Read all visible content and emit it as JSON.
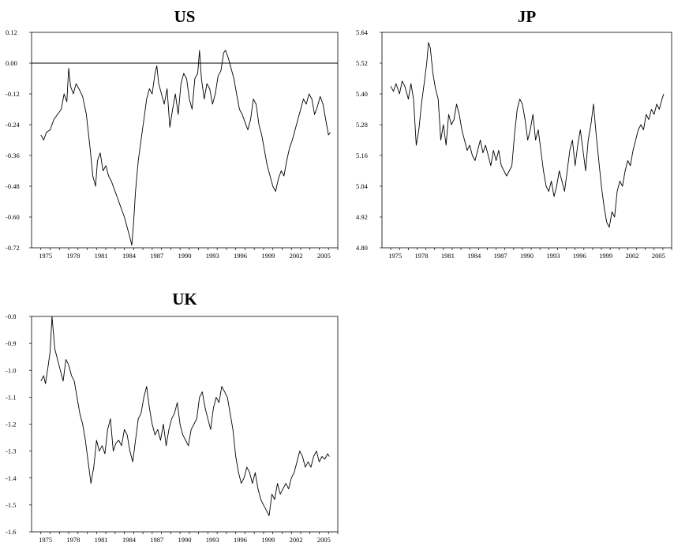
{
  "chart_data": [
    {
      "type": "line",
      "title": "US",
      "xlim": [
        1974.0,
        2007.0
      ],
      "ylim": [
        -0.72,
        0.12
      ],
      "xticks": [
        "1975",
        "1978",
        "1981",
        "1984",
        "1987",
        "1990",
        "1993",
        "1996",
        "1999",
        "2002",
        "2005"
      ],
      "yticks": [
        "0.12",
        "0.00",
        "-0.12",
        "-0.24",
        "-0.36",
        "-0.48",
        "-0.60",
        "-0.72"
      ],
      "reference_line_y": 0.0,
      "x": [
        1975.0,
        1975.3,
        1975.6,
        1976.0,
        1976.4,
        1976.8,
        1977.2,
        1977.5,
        1977.8,
        1978.0,
        1978.2,
        1978.5,
        1978.8,
        1979.1,
        1979.5,
        1979.9,
        1980.3,
        1980.6,
        1980.9,
        1981.1,
        1981.4,
        1981.7,
        1982.0,
        1982.3,
        1982.6,
        1982.9,
        1983.2,
        1983.5,
        1983.8,
        1984.0,
        1984.3,
        1984.6,
        1984.8,
        1985.0,
        1985.2,
        1985.5,
        1985.8,
        1986.1,
        1986.4,
        1986.7,
        1987.0,
        1987.3,
        1987.5,
        1987.7,
        1988.0,
        1988.3,
        1988.6,
        1988.9,
        1989.2,
        1989.5,
        1989.8,
        1990.1,
        1990.4,
        1990.7,
        1991.0,
        1991.3,
        1991.6,
        1991.9,
        1992.1,
        1992.3,
        1992.6,
        1992.9,
        1993.2,
        1993.5,
        1993.8,
        1994.1,
        1994.4,
        1994.7,
        1994.9,
        1995.2,
        1995.5,
        1995.8,
        1996.1,
        1996.4,
        1996.7,
        1997.0,
        1997.3,
        1997.6,
        1997.9,
        1998.2,
        1998.5,
        1998.8,
        1999.1,
        1999.4,
        1999.7,
        2000.0,
        2000.3,
        2000.6,
        2000.9,
        2001.2,
        2001.5,
        2001.8,
        2002.1,
        2002.4,
        2002.7,
        2003.0,
        2003.3,
        2003.6,
        2003.9,
        2004.2,
        2004.5,
        2004.8,
        2005.1,
        2005.4,
        2005.7,
        2006.0,
        2006.2
      ],
      "values": [
        -0.28,
        -0.3,
        -0.27,
        -0.26,
        -0.22,
        -0.2,
        -0.18,
        -0.12,
        -0.15,
        -0.02,
        -0.09,
        -0.12,
        -0.08,
        -0.1,
        -0.13,
        -0.2,
        -0.33,
        -0.44,
        -0.48,
        -0.38,
        -0.35,
        -0.42,
        -0.4,
        -0.44,
        -0.46,
        -0.49,
        -0.52,
        -0.55,
        -0.58,
        -0.6,
        -0.64,
        -0.68,
        -0.71,
        -0.62,
        -0.5,
        -0.38,
        -0.3,
        -0.22,
        -0.14,
        -0.1,
        -0.12,
        -0.04,
        -0.01,
        -0.08,
        -0.12,
        -0.16,
        -0.1,
        -0.25,
        -0.18,
        -0.12,
        -0.2,
        -0.08,
        -0.04,
        -0.06,
        -0.14,
        -0.18,
        -0.06,
        -0.04,
        0.05,
        -0.06,
        -0.14,
        -0.08,
        -0.1,
        -0.16,
        -0.12,
        -0.05,
        -0.03,
        0.04,
        0.05,
        0.02,
        -0.02,
        -0.06,
        -0.12,
        -0.18,
        -0.2,
        -0.23,
        -0.26,
        -0.22,
        -0.14,
        -0.16,
        -0.24,
        -0.28,
        -0.34,
        -0.4,
        -0.44,
        -0.48,
        -0.5,
        -0.45,
        -0.42,
        -0.44,
        -0.38,
        -0.33,
        -0.3,
        -0.26,
        -0.22,
        -0.18,
        -0.14,
        -0.16,
        -0.12,
        -0.14,
        -0.2,
        -0.17,
        -0.13,
        -0.16,
        -0.22,
        -0.28,
        -0.27
      ]
    },
    {
      "type": "line",
      "title": "JP",
      "xlim": [
        1974.0,
        2007.0
      ],
      "ylim": [
        4.8,
        5.64
      ],
      "xticks": [
        "1975",
        "1978",
        "1981",
        "1984",
        "1987",
        "1990",
        "1993",
        "1996",
        "1999",
        "2002",
        "2005"
      ],
      "yticks": [
        "5.64",
        "5.52",
        "5.40",
        "5.28",
        "5.16",
        "5.04",
        "4.92",
        "4.80"
      ],
      "x": [
        1975.0,
        1975.3,
        1975.6,
        1976.0,
        1976.3,
        1976.6,
        1977.0,
        1977.3,
        1977.6,
        1977.9,
        1978.2,
        1978.5,
        1978.8,
        1979.1,
        1979.3,
        1979.5,
        1979.8,
        1980.1,
        1980.4,
        1980.7,
        1981.0,
        1981.3,
        1981.6,
        1981.9,
        1982.2,
        1982.5,
        1982.8,
        1983.1,
        1983.4,
        1983.7,
        1984.0,
        1984.3,
        1984.6,
        1984.9,
        1985.2,
        1985.5,
        1985.8,
        1986.1,
        1986.4,
        1986.7,
        1987.0,
        1987.3,
        1987.6,
        1987.9,
        1988.2,
        1988.5,
        1988.8,
        1989.1,
        1989.4,
        1989.7,
        1990.0,
        1990.3,
        1990.6,
        1990.9,
        1991.2,
        1991.5,
        1991.8,
        1992.1,
        1992.4,
        1992.7,
        1993.0,
        1993.3,
        1993.6,
        1993.9,
        1994.2,
        1994.5,
        1994.8,
        1995.1,
        1995.4,
        1995.7,
        1996.0,
        1996.3,
        1996.6,
        1996.9,
        1997.2,
        1997.5,
        1997.8,
        1998.1,
        1998.4,
        1998.7,
        1999.0,
        1999.3,
        1999.6,
        1999.9,
        2000.2,
        2000.5,
        2000.8,
        2001.1,
        2001.4,
        2001.7,
        2002.0,
        2002.3,
        2002.6,
        2002.9,
        2003.2,
        2003.5,
        2003.8,
        2004.1,
        2004.4,
        2004.7,
        2005.0,
        2005.3,
        2005.6,
        2005.9,
        2006.1
      ],
      "values": [
        5.43,
        5.41,
        5.44,
        5.4,
        5.45,
        5.43,
        5.38,
        5.44,
        5.38,
        5.2,
        5.26,
        5.36,
        5.44,
        5.52,
        5.6,
        5.58,
        5.48,
        5.42,
        5.38,
        5.22,
        5.28,
        5.2,
        5.32,
        5.28,
        5.3,
        5.36,
        5.32,
        5.26,
        5.22,
        5.18,
        5.2,
        5.16,
        5.14,
        5.18,
        5.22,
        5.17,
        5.2,
        5.16,
        5.12,
        5.18,
        5.14,
        5.18,
        5.12,
        5.1,
        5.08,
        5.1,
        5.12,
        5.24,
        5.34,
        5.38,
        5.36,
        5.3,
        5.22,
        5.26,
        5.32,
        5.22,
        5.26,
        5.18,
        5.1,
        5.04,
        5.02,
        5.06,
        5.0,
        5.04,
        5.1,
        5.06,
        5.02,
        5.1,
        5.18,
        5.22,
        5.12,
        5.2,
        5.26,
        5.18,
        5.1,
        5.22,
        5.28,
        5.36,
        5.24,
        5.14,
        5.04,
        4.96,
        4.9,
        4.88,
        4.94,
        4.92,
        5.02,
        5.06,
        5.04,
        5.1,
        5.14,
        5.12,
        5.18,
        5.22,
        5.26,
        5.28,
        5.26,
        5.32,
        5.3,
        5.34,
        5.32,
        5.36,
        5.34,
        5.38,
        5.4
      ]
    },
    {
      "type": "line",
      "title": "UK",
      "xlim": [
        1974.0,
        2007.0
      ],
      "ylim": [
        -1.6,
        -0.8
      ],
      "xticks": [
        "1975",
        "1978",
        "1981",
        "1984",
        "1987",
        "1990",
        "1993",
        "1996",
        "1999",
        "2002",
        "2005"
      ],
      "yticks": [
        "-0.8",
        "-0.9",
        "-1.0",
        "-1.1",
        "-1.2",
        "-1.3",
        "-1.4",
        "-1.5",
        "-1.6"
      ],
      "x": [
        1975.0,
        1975.3,
        1975.5,
        1975.8,
        1976.0,
        1976.2,
        1976.5,
        1976.8,
        1977.1,
        1977.4,
        1977.7,
        1978.0,
        1978.3,
        1978.6,
        1978.9,
        1979.2,
        1979.5,
        1979.8,
        1980.1,
        1980.4,
        1980.7,
        1981.0,
        1981.3,
        1981.6,
        1981.9,
        1982.2,
        1982.5,
        1982.8,
        1983.1,
        1983.4,
        1983.7,
        1984.0,
        1984.3,
        1984.6,
        1984.9,
        1985.2,
        1985.5,
        1985.8,
        1986.1,
        1986.4,
        1986.7,
        1987.0,
        1987.3,
        1987.6,
        1987.9,
        1988.2,
        1988.5,
        1988.8,
        1989.1,
        1989.4,
        1989.7,
        1990.0,
        1990.3,
        1990.6,
        1990.9,
        1991.2,
        1991.5,
        1991.8,
        1992.1,
        1992.4,
        1992.7,
        1993.0,
        1993.3,
        1993.6,
        1993.9,
        1994.2,
        1994.5,
        1994.8,
        1995.1,
        1995.4,
        1995.7,
        1996.0,
        1996.3,
        1996.6,
        1996.9,
        1997.2,
        1997.5,
        1997.8,
        1998.1,
        1998.4,
        1998.7,
        1999.0,
        1999.3,
        1999.6,
        1999.9,
        2000.2,
        2000.5,
        2000.8,
        2001.1,
        2001.4,
        2001.7,
        2002.0,
        2002.3,
        2002.6,
        2002.9,
        2003.2,
        2003.5,
        2003.8,
        2004.1,
        2004.4,
        2004.7,
        2005.0,
        2005.3,
        2005.6,
        2005.9,
        2006.1
      ],
      "values": [
        -1.04,
        -1.02,
        -1.05,
        -0.98,
        -0.93,
        -0.8,
        -0.92,
        -0.96,
        -1.0,
        -1.04,
        -0.96,
        -0.98,
        -1.02,
        -1.04,
        -1.1,
        -1.16,
        -1.2,
        -1.26,
        -1.34,
        -1.42,
        -1.36,
        -1.26,
        -1.3,
        -1.28,
        -1.31,
        -1.22,
        -1.18,
        -1.3,
        -1.27,
        -1.26,
        -1.28,
        -1.22,
        -1.24,
        -1.3,
        -1.34,
        -1.26,
        -1.18,
        -1.16,
        -1.1,
        -1.06,
        -1.14,
        -1.2,
        -1.24,
        -1.22,
        -1.26,
        -1.2,
        -1.28,
        -1.22,
        -1.18,
        -1.16,
        -1.12,
        -1.2,
        -1.24,
        -1.26,
        -1.28,
        -1.22,
        -1.2,
        -1.18,
        -1.1,
        -1.08,
        -1.14,
        -1.18,
        -1.22,
        -1.14,
        -1.1,
        -1.12,
        -1.06,
        -1.08,
        -1.1,
        -1.16,
        -1.22,
        -1.32,
        -1.38,
        -1.42,
        -1.4,
        -1.36,
        -1.38,
        -1.42,
        -1.38,
        -1.44,
        -1.48,
        -1.5,
        -1.52,
        -1.54,
        -1.46,
        -1.48,
        -1.42,
        -1.46,
        -1.44,
        -1.42,
        -1.44,
        -1.4,
        -1.38,
        -1.34,
        -1.3,
        -1.32,
        -1.36,
        -1.34,
        -1.36,
        -1.32,
        -1.3,
        -1.34,
        -1.32,
        -1.33,
        -1.31,
        -1.32
      ]
    }
  ]
}
